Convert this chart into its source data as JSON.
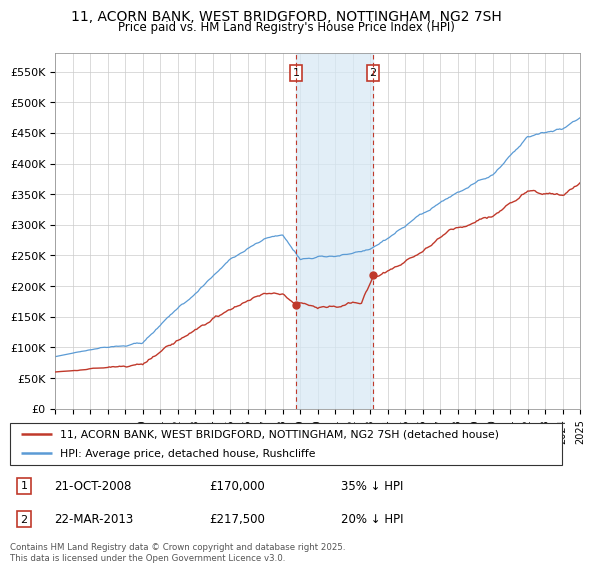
{
  "title": "11, ACORN BANK, WEST BRIDGFORD, NOTTINGHAM, NG2 7SH",
  "subtitle": "Price paid vs. HM Land Registry's House Price Index (HPI)",
  "ylim": [
    0,
    580000
  ],
  "yticks": [
    0,
    50000,
    100000,
    150000,
    200000,
    250000,
    300000,
    350000,
    400000,
    450000,
    500000,
    550000
  ],
  "ytick_labels": [
    "£0",
    "£50K",
    "£100K",
    "£150K",
    "£200K",
    "£250K",
    "£300K",
    "£350K",
    "£400K",
    "£450K",
    "£500K",
    "£550K"
  ],
  "hpi_color": "#5b9bd5",
  "price_color": "#c0392b",
  "marker1_date_str": "21-OCT-2008",
  "marker1_price": 170000,
  "marker1_price_fmt": "£170,000",
  "marker1_pct": "35% ↓ HPI",
  "marker2_date_str": "22-MAR-2013",
  "marker2_price": 217500,
  "marker2_price_fmt": "£217,500",
  "marker2_pct": "20% ↓ HPI",
  "legend_line1": "11, ACORN BANK, WEST BRIDGFORD, NOTTINGHAM, NG2 7SH (detached house)",
  "legend_line2": "HPI: Average price, detached house, Rushcliffe",
  "footnote": "Contains HM Land Registry data © Crown copyright and database right 2025.\nThis data is licensed under the Open Government Licence v3.0.",
  "background_color": "#ffffff",
  "plot_bg_color": "#ffffff",
  "grid_color": "#cccccc",
  "span_color": "#d6e8f5"
}
